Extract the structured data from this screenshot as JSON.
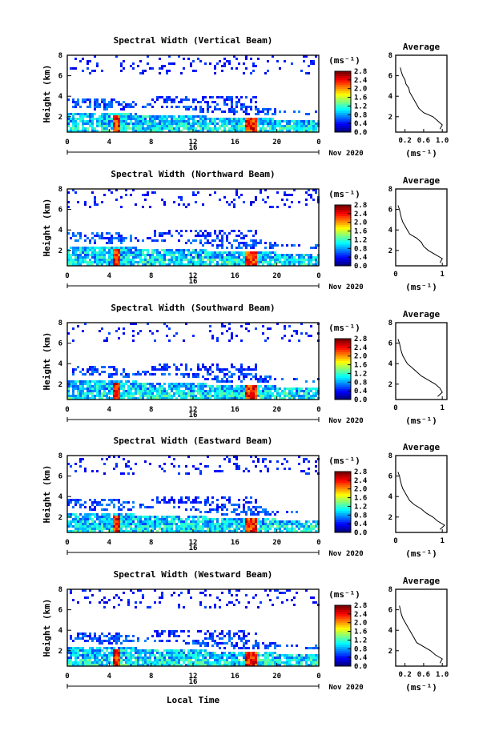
{
  "figure": {
    "xlabel": "Local Time",
    "date_label": "Nov 2020",
    "day_label": "16",
    "colorbar_unit": "(ms⁻¹)",
    "avg_title": "Average",
    "avg_unit": "(ms⁻¹)",
    "ylabel": "Height (km)"
  },
  "chart_data": [
    {
      "type": "heatmap",
      "title": "Spectral Width (Vertical Beam)",
      "xlabel": "Local Time",
      "ylabel": "Height (km)",
      "x_ticks": [
        "0",
        "4",
        "8",
        "12",
        "16",
        "20",
        "0"
      ],
      "y_ticks": [
        "2",
        "4",
        "6",
        "8"
      ],
      "xlim": [
        0,
        24
      ],
      "ylim": [
        0.5,
        8
      ],
      "colorbar": {
        "unit": "(ms⁻¹)",
        "ticks": [
          "0.0",
          "0.4",
          "0.8",
          "1.2",
          "1.6",
          "2.0",
          "2.4",
          "2.8"
        ],
        "range": [
          0,
          2.8
        ]
      },
      "profile": {
        "title": "Average",
        "xlabel": "(ms⁻¹)",
        "xlim": [
          0,
          1.1
        ],
        "x_ticks": [
          "0.2",
          "0.6",
          "1.0"
        ],
        "y_ticks": [
          "2",
          "4",
          "6",
          "8"
        ],
        "heights": [
          0.8,
          1.2,
          1.6,
          2.0,
          2.4,
          2.8,
          3.2,
          3.6,
          4.0,
          4.4,
          4.8,
          5.2,
          5.6,
          6.0,
          6.4,
          6.8
        ],
        "values": [
          0.95,
          1.0,
          0.9,
          0.8,
          0.6,
          0.5,
          0.45,
          0.4,
          0.35,
          0.3,
          0.28,
          0.22,
          0.2,
          0.15,
          0.12,
          0.1
        ]
      }
    },
    {
      "type": "heatmap",
      "title": "Spectral Width (Northward Beam)",
      "xlabel": "Local Time",
      "ylabel": "Height (km)",
      "x_ticks": [
        "0",
        "4",
        "8",
        "12",
        "16",
        "20",
        "0"
      ],
      "y_ticks": [
        "2",
        "4",
        "6",
        "8"
      ],
      "xlim": [
        0,
        24
      ],
      "ylim": [
        0.5,
        8
      ],
      "colorbar": {
        "unit": "(ms⁻¹)",
        "ticks": [
          "0.0",
          "0.4",
          "0.8",
          "1.2",
          "1.6",
          "2.0",
          "2.4",
          "2.8"
        ],
        "range": [
          0,
          2.8
        ]
      },
      "profile": {
        "title": "Average",
        "xlabel": "(ms⁻¹)",
        "xlim": [
          0,
          1.1
        ],
        "x_ticks": [
          "0",
          "1"
        ],
        "y_ticks": [
          "2",
          "4",
          "6",
          "8"
        ],
        "heights": [
          0.8,
          1.2,
          1.6,
          2.0,
          2.4,
          2.8,
          3.2,
          3.6,
          4.0,
          4.4,
          4.8,
          5.2,
          5.6,
          6.0,
          6.4
        ],
        "values": [
          0.95,
          1.0,
          0.85,
          0.7,
          0.6,
          0.55,
          0.45,
          0.3,
          0.25,
          0.2,
          0.15,
          0.12,
          0.1,
          0.08,
          0.05
        ]
      }
    },
    {
      "type": "heatmap",
      "title": "Spectral Width (Southward Beam)",
      "xlabel": "Local Time",
      "ylabel": "Height (km)",
      "x_ticks": [
        "0",
        "4",
        "8",
        "12",
        "16",
        "20",
        "0"
      ],
      "y_ticks": [
        "2",
        "4",
        "6",
        "8"
      ],
      "xlim": [
        0,
        24
      ],
      "ylim": [
        0.5,
        8
      ],
      "colorbar": {
        "unit": "(ms⁻¹)",
        "ticks": [
          "0.0",
          "0.4",
          "0.8",
          "1.2",
          "1.6",
          "2.0",
          "2.4",
          "2.8"
        ],
        "range": [
          0,
          2.8
        ]
      },
      "profile": {
        "title": "Average",
        "xlabel": "(ms⁻¹)",
        "xlim": [
          0,
          1.1
        ],
        "x_ticks": [
          "0",
          "1"
        ],
        "y_ticks": [
          "2",
          "4",
          "6",
          "8"
        ],
        "heights": [
          0.8,
          1.2,
          1.6,
          2.0,
          2.4,
          2.8,
          3.2,
          3.6,
          4.0,
          4.4,
          4.8,
          5.2,
          5.6,
          6.0,
          6.4
        ],
        "values": [
          0.9,
          1.0,
          0.95,
          0.85,
          0.7,
          0.55,
          0.45,
          0.35,
          0.25,
          0.2,
          0.15,
          0.12,
          0.1,
          0.08,
          0.05
        ]
      }
    },
    {
      "type": "heatmap",
      "title": "Spectral Width (Eastward Beam)",
      "xlabel": "Local Time",
      "ylabel": "Height (km)",
      "x_ticks": [
        "0",
        "4",
        "8",
        "12",
        "16",
        "20",
        "0"
      ],
      "y_ticks": [
        "2",
        "4",
        "6",
        "8"
      ],
      "xlim": [
        0,
        24
      ],
      "ylim": [
        0.5,
        8
      ],
      "colorbar": {
        "unit": "(ms⁻¹)",
        "ticks": [
          "0.0",
          "0.4",
          "0.8",
          "1.2",
          "1.6",
          "2.0",
          "2.4",
          "2.8"
        ],
        "range": [
          0,
          2.8
        ]
      },
      "profile": {
        "title": "Average",
        "xlabel": "(ms⁻¹)",
        "xlim": [
          0,
          1.1
        ],
        "x_ticks": [
          "0",
          "1"
        ],
        "y_ticks": [
          "2",
          "4",
          "6",
          "8"
        ],
        "heights": [
          0.8,
          1.2,
          1.6,
          2.0,
          2.4,
          2.8,
          3.2,
          3.6,
          4.0,
          4.4,
          4.8,
          5.2,
          5.6,
          6.0,
          6.4
        ],
        "values": [
          0.95,
          1.05,
          0.9,
          0.8,
          0.65,
          0.55,
          0.4,
          0.3,
          0.25,
          0.2,
          0.15,
          0.12,
          0.1,
          0.08,
          0.05
        ]
      }
    },
    {
      "type": "heatmap",
      "title": "Spectral Width (Westward Beam)",
      "xlabel": "Local Time",
      "ylabel": "Height (km)",
      "x_ticks": [
        "0",
        "4",
        "8",
        "12",
        "16",
        "20",
        "0"
      ],
      "y_ticks": [
        "2",
        "4",
        "6",
        "8"
      ],
      "xlim": [
        0,
        24
      ],
      "ylim": [
        0.5,
        8
      ],
      "colorbar": {
        "unit": "(ms⁻¹)",
        "ticks": [
          "0.0",
          "0.4",
          "0.8",
          "1.2",
          "1.6",
          "2.0",
          "2.4",
          "2.8"
        ],
        "range": [
          0,
          2.8
        ]
      },
      "profile": {
        "title": "Average",
        "xlabel": "(ms⁻¹)",
        "xlim": [
          0,
          1.1
        ],
        "x_ticks": [
          "0.2",
          "0.6",
          "1.0"
        ],
        "y_ticks": [
          "2",
          "4",
          "6",
          "8"
        ],
        "heights": [
          0.8,
          1.2,
          1.6,
          2.0,
          2.4,
          2.8,
          3.2,
          3.6,
          4.0,
          4.4,
          4.8,
          5.2,
          5.6,
          6.0,
          6.4
        ],
        "values": [
          0.95,
          1.0,
          0.85,
          0.75,
          0.6,
          0.45,
          0.4,
          0.35,
          0.3,
          0.25,
          0.2,
          0.15,
          0.12,
          0.1,
          0.08
        ]
      }
    }
  ]
}
